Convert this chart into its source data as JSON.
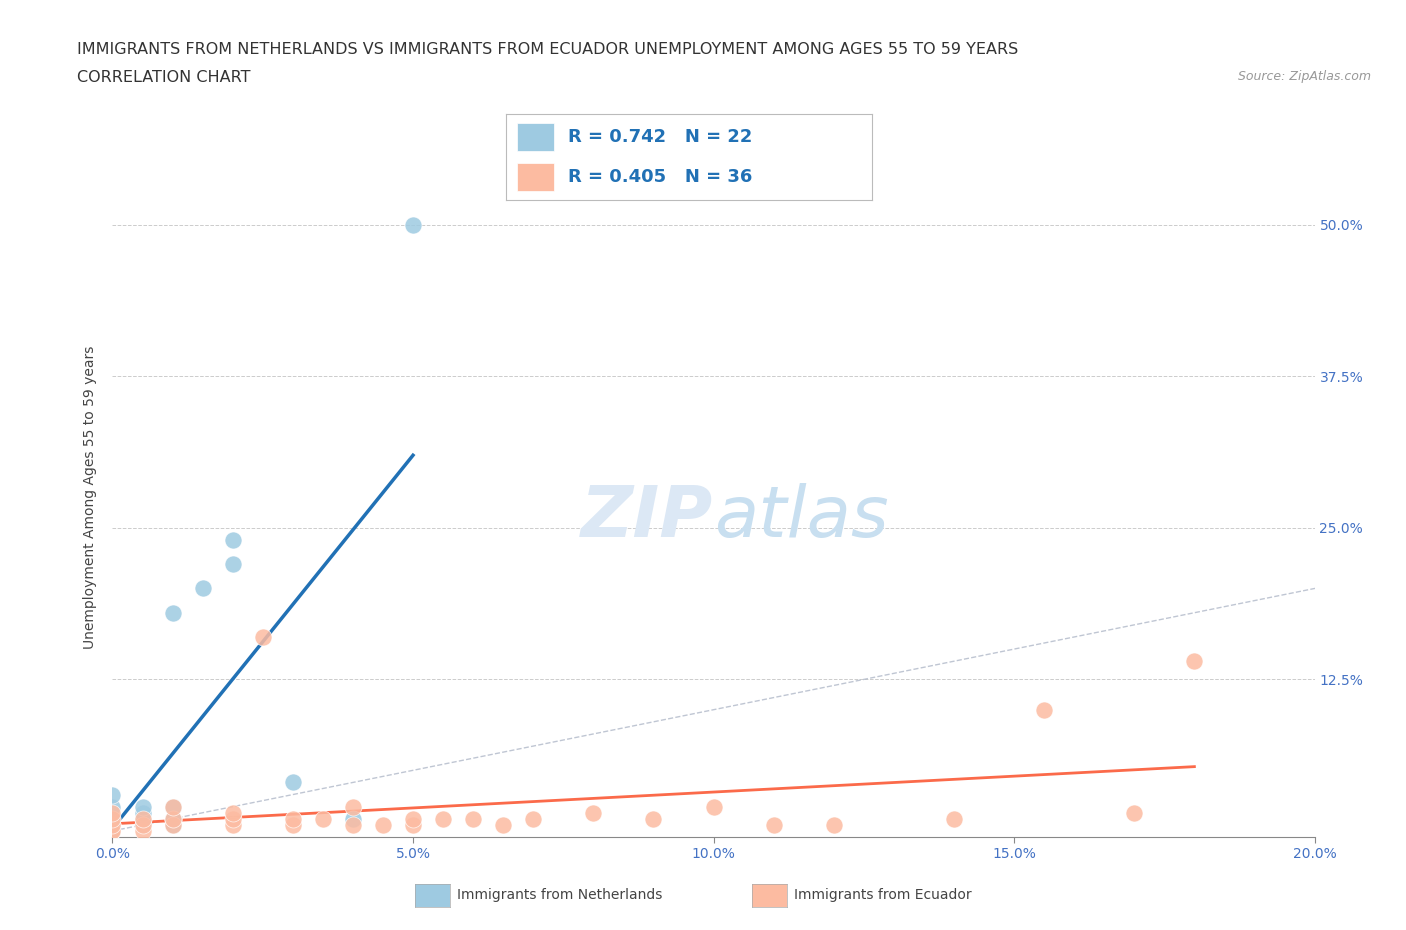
{
  "title_line1": "IMMIGRANTS FROM NETHERLANDS VS IMMIGRANTS FROM ECUADOR UNEMPLOYMENT AMONG AGES 55 TO 59 YEARS",
  "title_line2": "CORRELATION CHART",
  "source_text": "Source: ZipAtlas.com",
  "ylabel": "Unemployment Among Ages 55 to 59 years",
  "xlim": [
    0.0,
    0.2
  ],
  "ylim": [
    0.0,
    0.55
  ],
  "xticks": [
    0.0,
    0.05,
    0.1,
    0.15,
    0.2
  ],
  "xtick_labels": [
    "0.0%",
    "5.0%",
    "10.0%",
    "15.0%",
    "20.0%"
  ],
  "ytick_labels": [
    "12.5%",
    "25.0%",
    "37.5%",
    "50.0%"
  ],
  "ytick_values": [
    0.125,
    0.25,
    0.375,
    0.5
  ],
  "netherlands_R": 0.742,
  "netherlands_N": 22,
  "ecuador_R": 0.405,
  "ecuador_N": 36,
  "netherlands_color": "#9ecae1",
  "ecuador_color": "#fcbba1",
  "netherlands_line_color": "#2171b5",
  "ecuador_line_color": "#fb6a4a",
  "legend_netherlands_label": "Immigrants from Netherlands",
  "legend_ecuador_label": "Immigrants from Ecuador",
  "watermark_color": "#dce8f5",
  "netherlands_x": [
    0.0,
    0.0,
    0.0,
    0.0,
    0.0,
    0.0,
    0.0,
    0.005,
    0.005,
    0.005,
    0.005,
    0.01,
    0.01,
    0.01,
    0.01,
    0.01,
    0.015,
    0.02,
    0.02,
    0.03,
    0.04,
    0.05
  ],
  "netherlands_y": [
    0.0,
    0.0,
    0.005,
    0.005,
    0.01,
    0.02,
    0.03,
    0.005,
    0.01,
    0.015,
    0.02,
    0.005,
    0.01,
    0.01,
    0.02,
    0.18,
    0.2,
    0.22,
    0.24,
    0.04,
    0.01,
    0.5
  ],
  "ecuador_x": [
    0.0,
    0.0,
    0.0,
    0.0,
    0.0,
    0.005,
    0.005,
    0.005,
    0.01,
    0.01,
    0.01,
    0.02,
    0.02,
    0.02,
    0.025,
    0.03,
    0.03,
    0.035,
    0.04,
    0.04,
    0.045,
    0.05,
    0.05,
    0.055,
    0.06,
    0.065,
    0.07,
    0.08,
    0.09,
    0.1,
    0.11,
    0.12,
    0.14,
    0.155,
    0.17,
    0.18
  ],
  "ecuador_y": [
    0.0,
    0.0,
    0.005,
    0.01,
    0.015,
    0.0,
    0.005,
    0.01,
    0.005,
    0.01,
    0.02,
    0.005,
    0.01,
    0.015,
    0.16,
    0.005,
    0.01,
    0.01,
    0.005,
    0.02,
    0.005,
    0.005,
    0.01,
    0.01,
    0.01,
    0.005,
    0.01,
    0.015,
    0.01,
    0.02,
    0.005,
    0.005,
    0.01,
    0.1,
    0.015,
    0.14
  ],
  "background_color": "#ffffff",
  "grid_color": "#cccccc",
  "title_fontsize": 11.5,
  "axis_label_fontsize": 10,
  "tick_fontsize": 10,
  "legend_fontsize": 13,
  "legend_R_color": "#2171b5"
}
